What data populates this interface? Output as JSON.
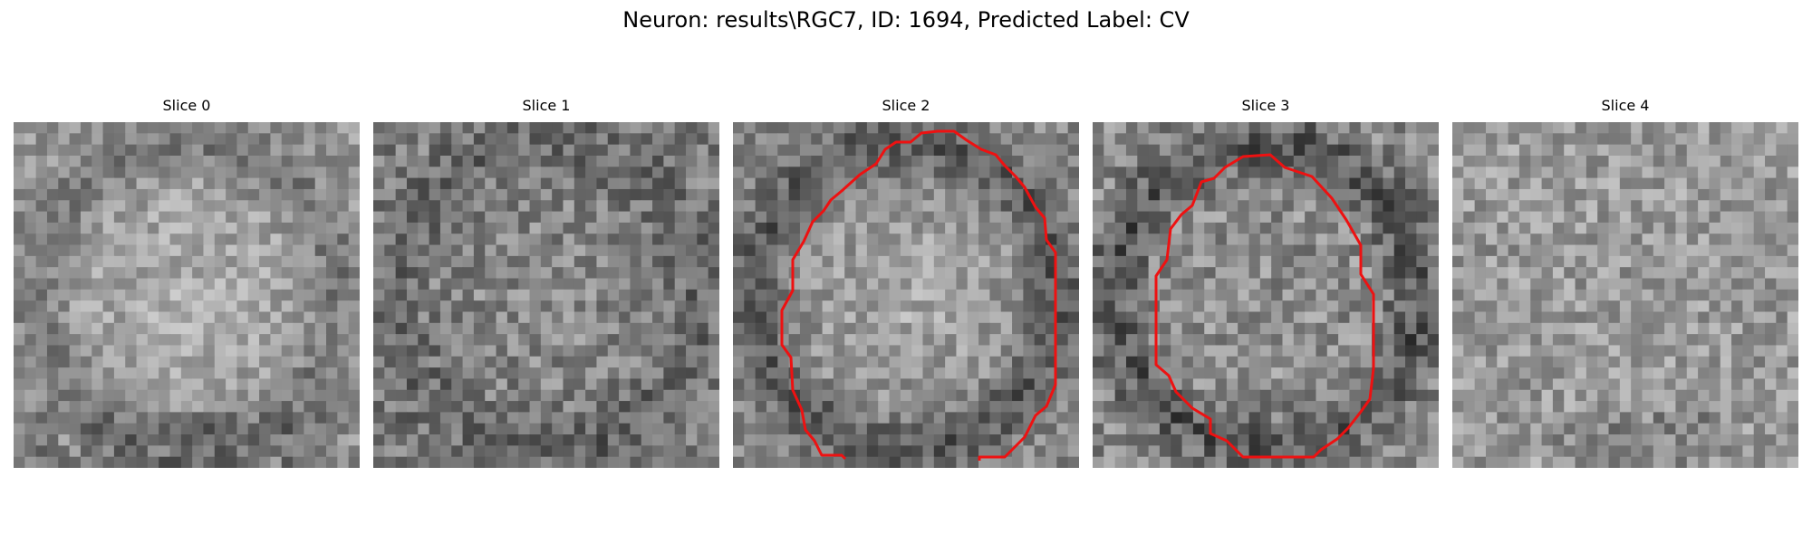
{
  "figure": {
    "title": "Neuron: results\\RGC7, ID: 1694, Predicted Label: CV"
  },
  "panels": [
    {
      "title": "Slice 0",
      "has_contour": false
    },
    {
      "title": "Slice 1",
      "has_contour": false
    },
    {
      "title": "Slice 2",
      "has_contour": true
    },
    {
      "title": "Slice 3",
      "has_contour": true
    },
    {
      "title": "Slice 4",
      "has_contour": false
    }
  ],
  "colors": {
    "contour": "#ee1111",
    "background": "#ffffff"
  }
}
